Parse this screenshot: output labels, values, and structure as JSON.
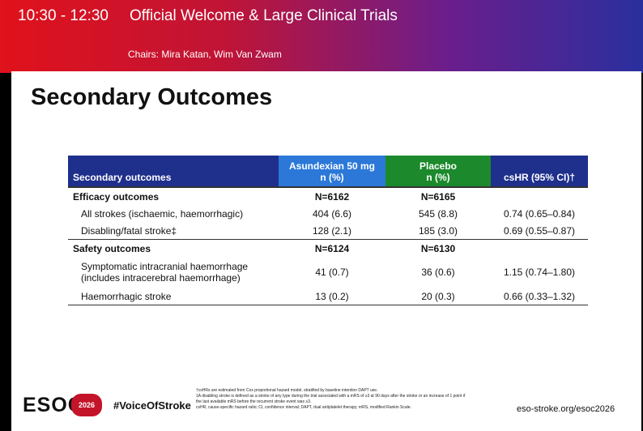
{
  "banner": {
    "time": "10:30 - 12:30",
    "title": "Official Welcome & Large Clinical Trials",
    "chairs": "Chairs: Mira Katan, Wim Van Zwam"
  },
  "slide": {
    "title": "Secondary Outcomes",
    "table": {
      "headers": {
        "outcomes": "Secondary outcomes",
        "asundexian_1": "Asundexian 50 mg",
        "asundexian_2": "n (%)",
        "placebo_1": "Placebo",
        "placebo_2": "n (%)",
        "cshr": "csHR (95% CI)†"
      },
      "efficacy": {
        "label": "Efficacy outcomes",
        "n_asundexian": "N=6162",
        "n_placebo": "N=6165",
        "rows": [
          {
            "label": "All strokes (ischaemic, haemorrhagic)",
            "asundexian": "404 (6.6)",
            "placebo": "545 (8.8)",
            "cshr": "0.74 (0.65–0.84)"
          },
          {
            "label": "Disabling/fatal stroke‡",
            "asundexian": "128 (2.1)",
            "placebo": "185 (3.0)",
            "cshr": "0.69 (0.55–0.87)"
          }
        ]
      },
      "safety": {
        "label": "Safety outcomes",
        "n_asundexian": "N=6124",
        "n_placebo": "N=6130",
        "rows": [
          {
            "label_1": "Symptomatic intracranial haemorrhage",
            "label_2": "(includes intracerebral haemorrhage)",
            "asundexian": "41 (0.7)",
            "placebo": "36 (0.6)",
            "cshr": "1.15 (0.74–1.80)"
          },
          {
            "label": "Haemorrhagic stroke",
            "asundexian": "13 (0.2)",
            "placebo": "20 (0.3)",
            "cshr": "0.66 (0.33–1.32)"
          }
        ]
      }
    },
    "footer": {
      "logo": "ESOC",
      "logo_year": "2026",
      "hashtag": "#VoiceOfStroke",
      "footnote_1": "†csHRs are estimated from Cox proportional hazard model, stratified by baseline intention DAPT use.",
      "footnote_2": "‡A disabling stroke is defined as a stroke of any type during the trial associated with a mRS of ≥3 at 90 days after the stroke or an increase of 1 point if the last available mRS before the recurrent stroke event was ≥3.",
      "footnote_3": "csHR, cause-specific hazard ratio; CI, confidence interval; DAPT, dual antiplatelet therapy; mRS, modified Rankin Scale.",
      "url": "eso-stroke.org/esoc2026"
    }
  },
  "colors": {
    "header_dark": "#1f2f8c",
    "header_asundexian": "#2b78d8",
    "header_placebo": "#1c8a2c",
    "brand_red": "#c4142a"
  }
}
